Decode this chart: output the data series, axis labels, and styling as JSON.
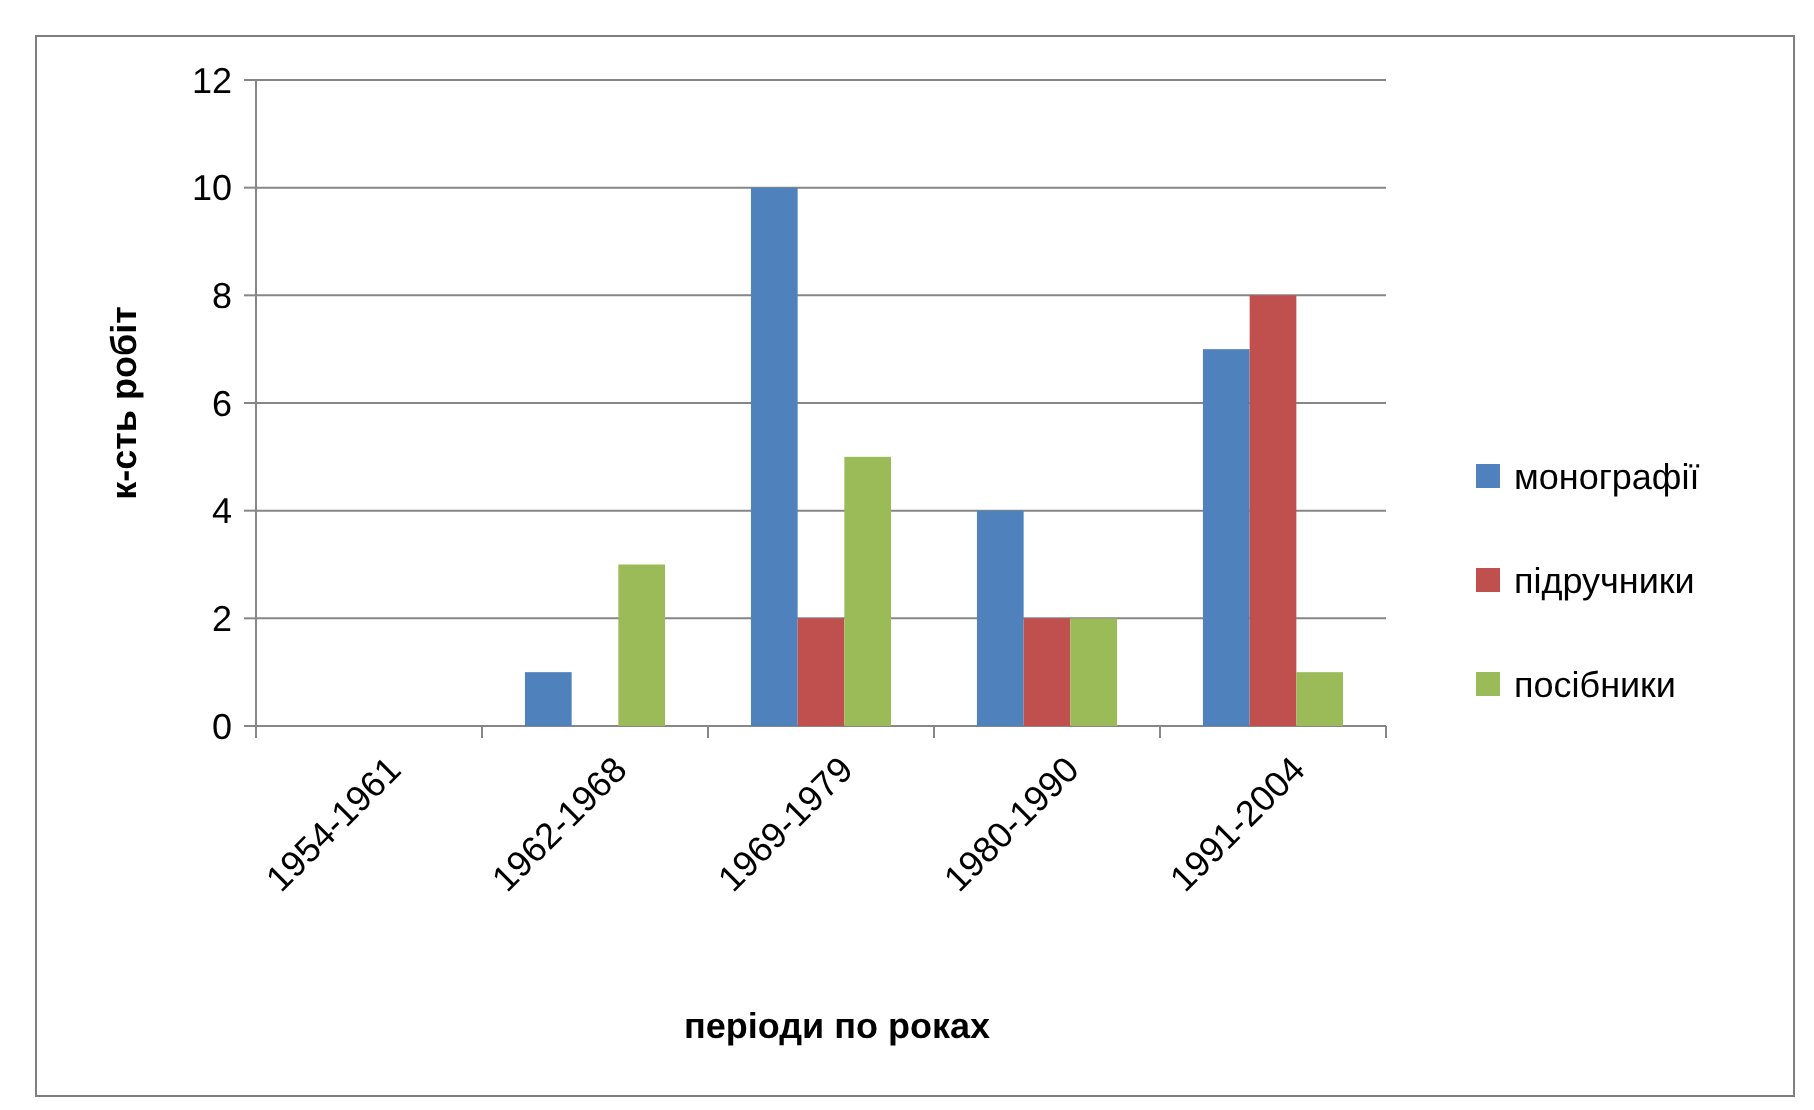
{
  "chart_data": {
    "type": "bar",
    "xlabel": "періоди  по роках",
    "ylabel": "к-сть робіт",
    "categories": [
      "1954-1961",
      "1962-1968",
      "1969-1979",
      "1980-1990",
      "1991-2004"
    ],
    "series": [
      {
        "name": "монографії",
        "color": "#4f81bd",
        "values": [
          0,
          1,
          10,
          4,
          7
        ]
      },
      {
        "name": "підручники",
        "color": "#c0504d",
        "values": [
          0,
          0,
          2,
          2,
          8
        ]
      },
      {
        "name": "посібники",
        "color": "#9bbb59",
        "values": [
          0,
          3,
          5,
          2,
          1
        ]
      }
    ],
    "ylim": [
      0,
      12
    ],
    "yticks": [
      0,
      2,
      4,
      6,
      8,
      10,
      12
    ],
    "grid": "y",
    "legend": "right"
  }
}
